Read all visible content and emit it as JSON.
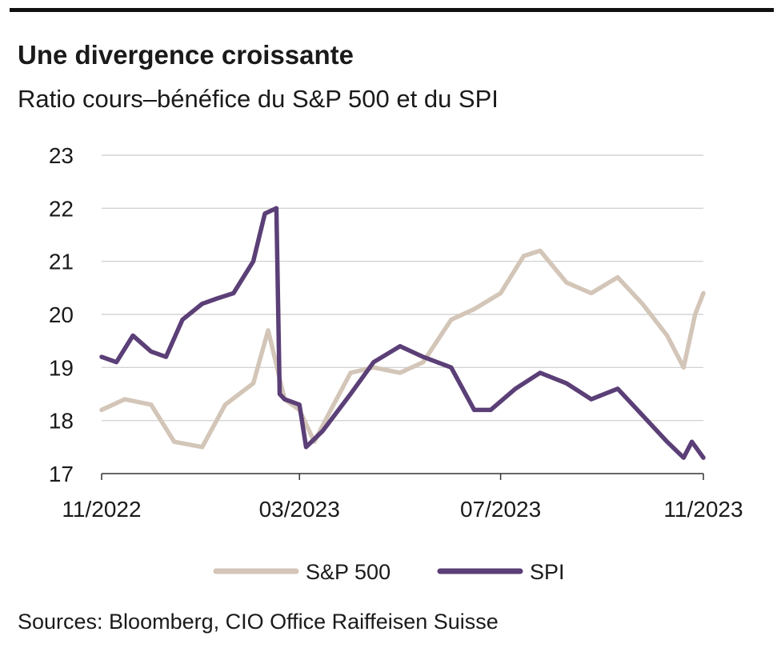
{
  "header": {
    "title": "Une divergence croissante",
    "subtitle": "Ratio cours–bénéfice du S&P 500 et du SPI"
  },
  "footer": {
    "source": "Sources: Bloomberg, CIO Office Raiffeisen Suisse"
  },
  "colors": {
    "sp500": "#d3c6b8",
    "spi": "#5b3f77",
    "grid": "#cccccc",
    "axis": "#333333"
  },
  "chart_data": {
    "type": "line",
    "title": "Une divergence croissante",
    "subtitle": "Ratio cours–bénéfice du S&P 500 et du SPI",
    "xlabel": "",
    "ylabel": "",
    "x_start": "2022-11",
    "x_end": "2023-11",
    "x_ticks": [
      "11/2022",
      "03/2023",
      "07/2023",
      "11/2023"
    ],
    "y_ticks": [
      17,
      18,
      19,
      20,
      21,
      22,
      23
    ],
    "ylim": [
      17,
      23
    ],
    "grid": true,
    "legend": "bottom-center",
    "series": [
      {
        "name": "S&P 500",
        "color": "#d3c6b8",
        "x": [
          "2022-11-01",
          "2022-11-15",
          "2022-12-01",
          "2022-12-15",
          "2023-01-01",
          "2023-01-15",
          "2023-02-01",
          "2023-02-10",
          "2023-02-20",
          "2023-03-01",
          "2023-03-10",
          "2023-03-20",
          "2023-04-01",
          "2023-04-15",
          "2023-05-01",
          "2023-05-15",
          "2023-06-01",
          "2023-06-15",
          "2023-07-01",
          "2023-07-15",
          "2023-07-25",
          "2023-08-10",
          "2023-08-25",
          "2023-09-10",
          "2023-09-25",
          "2023-10-10",
          "2023-10-20",
          "2023-10-27",
          "2023-11-01"
        ],
        "values": [
          18.2,
          18.4,
          18.3,
          17.6,
          17.5,
          18.3,
          18.7,
          19.7,
          18.4,
          18.2,
          17.6,
          18.2,
          18.9,
          19.0,
          18.9,
          19.1,
          19.9,
          20.1,
          20.4,
          21.1,
          21.2,
          20.6,
          20.4,
          20.7,
          20.2,
          19.6,
          19.0,
          20.0,
          20.4
        ]
      },
      {
        "name": "SPI",
        "color": "#5b3f77",
        "x": [
          "2022-11-01",
          "2022-11-10",
          "2022-11-20",
          "2022-12-01",
          "2022-12-10",
          "2022-12-20",
          "2023-01-01",
          "2023-01-10",
          "2023-01-20",
          "2023-02-01",
          "2023-02-08",
          "2023-02-15",
          "2023-02-17",
          "2023-02-20",
          "2023-03-01",
          "2023-03-05",
          "2023-03-15",
          "2023-04-01",
          "2023-04-15",
          "2023-05-01",
          "2023-05-15",
          "2023-06-01",
          "2023-06-15",
          "2023-06-25",
          "2023-07-10",
          "2023-07-25",
          "2023-08-10",
          "2023-08-25",
          "2023-09-10",
          "2023-09-25",
          "2023-10-10",
          "2023-10-20",
          "2023-10-25",
          "2023-11-01"
        ],
        "values": [
          19.2,
          19.1,
          19.6,
          19.3,
          19.2,
          19.9,
          20.2,
          20.3,
          20.4,
          21.0,
          21.9,
          22.0,
          18.5,
          18.4,
          18.3,
          17.5,
          17.8,
          18.5,
          19.1,
          19.4,
          19.2,
          19.0,
          18.2,
          18.2,
          18.6,
          18.9,
          18.7,
          18.4,
          18.6,
          18.1,
          17.6,
          17.3,
          17.6,
          17.3
        ]
      }
    ]
  }
}
